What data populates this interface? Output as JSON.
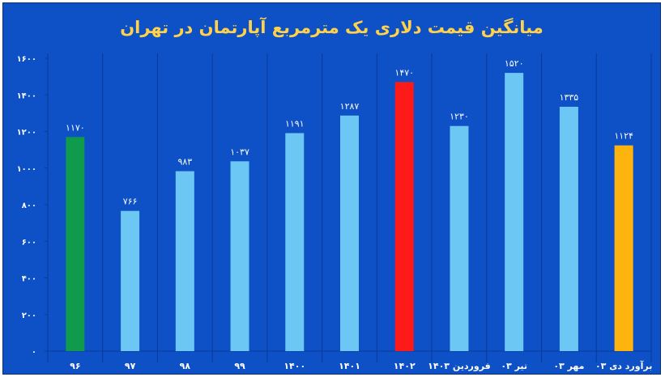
{
  "chart_data": {
    "type": "bar",
    "title": "میانگین قیمت دلاری یک مترمربع آپارتمان در تهران",
    "categories": [
      "۹۶",
      "۹۷",
      "۹۸",
      "۹۹",
      "۱۴۰۰",
      "۱۴۰۱",
      "۱۴۰۲",
      "فروردین ۱۴۰۳",
      "تیر ۰۳",
      "مهر ۰۳",
      "برآورد دی ۰۳"
    ],
    "values": [
      1170,
      766,
      983,
      1037,
      1191,
      1287,
      1470,
      1230,
      1520,
      1335,
      1124
    ],
    "value_labels": [
      "۱۱۷۰",
      "۷۶۶",
      "۹۸۳",
      "۱۰۳۷",
      "۱۱۹۱",
      "۱۲۸۷",
      "۱۴۷۰",
      "۱۲۳۰",
      "۱۵۲۰",
      "۱۳۳۵",
      "۱۱۲۴"
    ],
    "bar_colors": [
      "#0f9a4c",
      "#6cc7f4",
      "#6cc7f4",
      "#6cc7f4",
      "#6cc7f4",
      "#6cc7f4",
      "#ff1a1a",
      "#6cc7f4",
      "#6cc7f4",
      "#6cc7f4",
      "#ffb30f"
    ],
    "ylim": [
      0,
      1600
    ],
    "y_ticks": [
      0,
      200,
      400,
      600,
      800,
      1000,
      1200,
      1400,
      1600
    ],
    "y_tick_labels": [
      "۰",
      "۲۰۰",
      "۴۰۰",
      "۶۰۰",
      "۸۰۰",
      "۱۰۰۰",
      "۱۲۰۰",
      "۱۴۰۰",
      "۱۶۰۰"
    ],
    "grid": "vertical",
    "colors": {
      "background": "#0e50c6",
      "title": "#ffd24a",
      "text": "#ffffff",
      "grid": "#0a3a9a"
    }
  }
}
